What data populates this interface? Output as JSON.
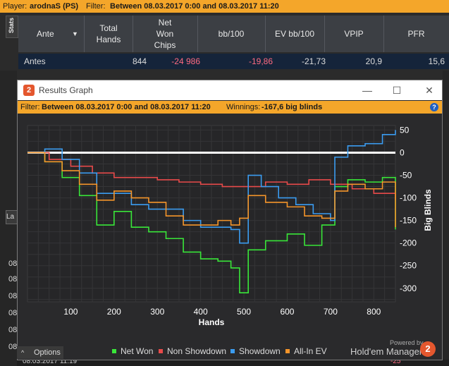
{
  "topbar": {
    "player_label": "Player:",
    "player_value": "arodnaS (PS)",
    "filter_label": "Filter:",
    "filter_value": "Between 08.03.2017 0:00 and 08.03.2017 11:20"
  },
  "stats_tab": "Stats",
  "grid": {
    "columns": [
      "Ante",
      "Total\nHands",
      "Net\nWon\nChips",
      "bb/100",
      "EV bb/100",
      "VPIP",
      "PFR"
    ],
    "row": {
      "name": "Antes",
      "hands": "844",
      "net_won": "-24 986",
      "bb100": "-19,86",
      "ev_bb100": "-21,73",
      "vpip": "20,9",
      "pfr": "15,6"
    }
  },
  "left_panel": {
    "la_tab": "La",
    "dates": [
      "08",
      "08",
      "08",
      "08",
      "08",
      "08"
    ]
  },
  "bottom_row": {
    "date": "08.03.2017 11:19",
    "value": "-25"
  },
  "window": {
    "logo": "2",
    "title": "Results Graph",
    "min_icon": "—",
    "max_icon": "☐",
    "close_icon": "✕",
    "filter_label": "Filter:",
    "filter_value": "Between 08.03.2017 0:00 and 08.03.2017 11:20",
    "winnings_label": "Winnings:",
    "winnings_value": "-167,6 big blinds",
    "help": "?",
    "legend": [
      {
        "label": "Net Won",
        "color": "#39e639"
      },
      {
        "label": "Non Showdown",
        "color": "#e84a4a"
      },
      {
        "label": "Showdown",
        "color": "#3b9cf0"
      },
      {
        "label": "All-In EV",
        "color": "#f5952a"
      }
    ],
    "powered": "Powered by",
    "brand": "Hold'em Manager",
    "brand_logo": "2",
    "options": "Options"
  },
  "chart_data": {
    "type": "line",
    "title": "",
    "xlabel": "Hands",
    "ylabel": "Big Blinds",
    "xlim": [
      0,
      850
    ],
    "ylim": [
      -330,
      60
    ],
    "xticks": [
      100,
      200,
      300,
      400,
      500,
      600,
      700,
      800
    ],
    "yticks": [
      50,
      0,
      -50,
      -100,
      -150,
      -200,
      -250,
      -300
    ],
    "grid": true,
    "series": [
      {
        "name": "Net Won",
        "color": "#39e639",
        "x": [
          0,
          40,
          80,
          120,
          160,
          200,
          240,
          280,
          320,
          360,
          400,
          440,
          470,
          490,
          510,
          550,
          600,
          640,
          680,
          710,
          740,
          780,
          820,
          850
        ],
        "y": [
          0,
          -20,
          -55,
          -95,
          -160,
          -130,
          -165,
          -175,
          -190,
          -220,
          -235,
          -240,
          -255,
          -310,
          -215,
          -195,
          -180,
          -205,
          -160,
          -75,
          -60,
          -65,
          -55,
          -170
        ]
      },
      {
        "name": "Non Showdown",
        "color": "#e84a4a",
        "x": [
          0,
          50,
          100,
          150,
          200,
          250,
          300,
          350,
          400,
          450,
          500,
          550,
          600,
          650,
          700,
          750,
          800,
          850
        ],
        "y": [
          0,
          -15,
          -30,
          -45,
          -55,
          -55,
          -60,
          -65,
          -70,
          -75,
          -75,
          -65,
          -70,
          -60,
          -70,
          -80,
          -90,
          -105
        ]
      },
      {
        "name": "Showdown",
        "color": "#3b9cf0",
        "x": [
          0,
          40,
          80,
          120,
          160,
          200,
          240,
          280,
          320,
          360,
          400,
          440,
          470,
          490,
          510,
          540,
          580,
          620,
          660,
          700,
          710,
          740,
          780,
          820,
          850
        ],
        "y": [
          0,
          8,
          -15,
          -45,
          -90,
          -90,
          -115,
          -125,
          -125,
          -150,
          -165,
          -165,
          -170,
          -200,
          -50,
          -75,
          -100,
          -115,
          -135,
          -150,
          -10,
          15,
          20,
          40,
          50
        ]
      },
      {
        "name": "All-In EV",
        "color": "#f5952a",
        "x": [
          0,
          40,
          80,
          120,
          160,
          200,
          240,
          280,
          320,
          360,
          400,
          440,
          470,
          490,
          510,
          550,
          600,
          640,
          680,
          710,
          740,
          780,
          820,
          850
        ],
        "y": [
          0,
          -20,
          -40,
          -70,
          -105,
          -85,
          -100,
          -110,
          -140,
          -160,
          -160,
          -150,
          -160,
          -145,
          -95,
          -110,
          -120,
          -140,
          -145,
          -85,
          -70,
          -80,
          -65,
          -165
        ]
      }
    ]
  }
}
